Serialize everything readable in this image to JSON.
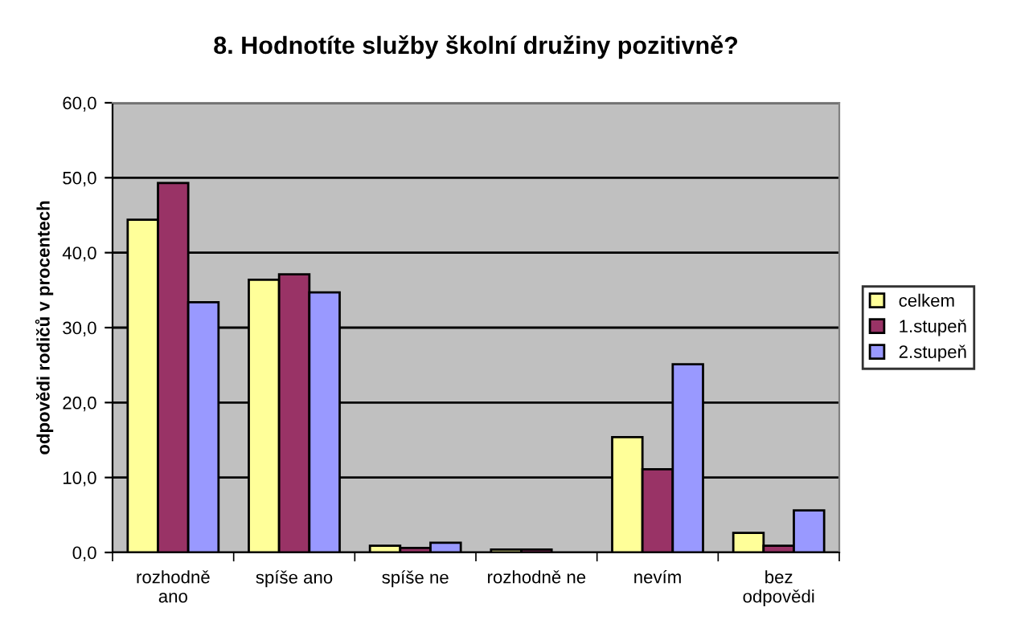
{
  "chart_data": {
    "type": "bar",
    "title": "8. Hodnotíte služby školní družiny pozitivně?",
    "ylabel": "odpovědi rodičů v procentech",
    "categories": [
      "rozhodně\nano",
      "spíše ano",
      "spíše ne",
      "rozhodně ne",
      "nevím",
      "bez\nodpovědi"
    ],
    "series": [
      {
        "name": "celkem",
        "color": "#ffff99",
        "values": [
          44.4,
          36.4,
          0.9,
          0.4,
          15.4,
          2.6
        ]
      },
      {
        "name": "1.stupeň",
        "color": "#993366",
        "values": [
          49.3,
          37.1,
          0.6,
          0.4,
          11.1,
          0.9
        ]
      },
      {
        "name": "2.stupeň",
        "color": "#9999ff",
        "values": [
          33.4,
          34.7,
          1.3,
          null,
          25.1,
          5.6
        ]
      }
    ],
    "ylim": [
      0,
      60
    ],
    "yticks": [
      {
        "value": 0,
        "label": "0,0"
      },
      {
        "value": 10,
        "label": "10,0"
      },
      {
        "value": 20,
        "label": "20,0"
      },
      {
        "value": 30,
        "label": "30,0"
      },
      {
        "value": 40,
        "label": "40,0"
      },
      {
        "value": 50,
        "label": "50,0"
      },
      {
        "value": 60,
        "label": "60,0"
      }
    ],
    "grid": "y",
    "legend": "right"
  }
}
